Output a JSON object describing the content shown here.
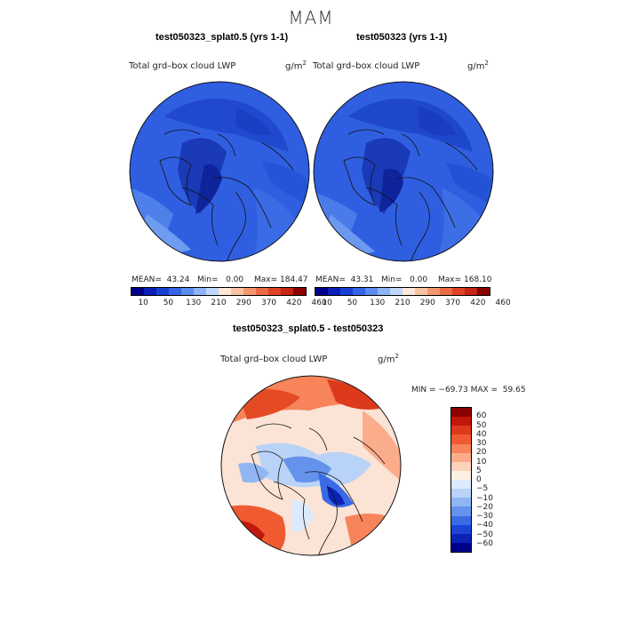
{
  "season": "MAM",
  "field_label": "Total grd–box cloud LWP",
  "units_base": "g/m",
  "units_exp": "2",
  "panels": {
    "left": {
      "title": "test050323_splat0.5 (yrs 1-1)",
      "mean": "MEAN=  43.24",
      "min": "Min=   0.00",
      "max": "Max= 184.47"
    },
    "right": {
      "title": "test050323 (yrs 1-1)",
      "mean": "MEAN=  43.31",
      "min": "Min=   0.00",
      "max": "Max= 168.10"
    },
    "diff": {
      "title": "test050323_splat0.5 - test050323",
      "minmax": "MIN = −69.73 MAX =  59.65"
    }
  },
  "abs_colorbar": {
    "colors": [
      "#00008b",
      "#0a1fb5",
      "#1a3fd6",
      "#3563e6",
      "#5b8cf0",
      "#8db4f7",
      "#c0d6fb",
      "#fde8d8",
      "#f9c3a3",
      "#f4966e",
      "#ec6a45",
      "#df4327",
      "#c72414",
      "#8b0000"
    ],
    "labels": [
      "10",
      "50",
      "130",
      "210",
      "290",
      "370",
      "420",
      "460"
    ]
  },
  "diff_colorbar": {
    "colors": [
      "#8b0000",
      "#c2170c",
      "#dd3a1c",
      "#f05a30",
      "#f7845a",
      "#fbad8b",
      "#fdd2bb",
      "#fff0e6",
      "#ddeafb",
      "#b9d3f8",
      "#8fb6f3",
      "#6492ec",
      "#3a6ae4",
      "#1d43d6",
      "#0c22b5",
      "#00008b"
    ],
    "labels": [
      "60",
      "50",
      "40",
      "30",
      "20",
      "10",
      "5",
      "0",
      "−5",
      "−10",
      "−20",
      "−30",
      "−40",
      "−50",
      "−60"
    ]
  }
}
